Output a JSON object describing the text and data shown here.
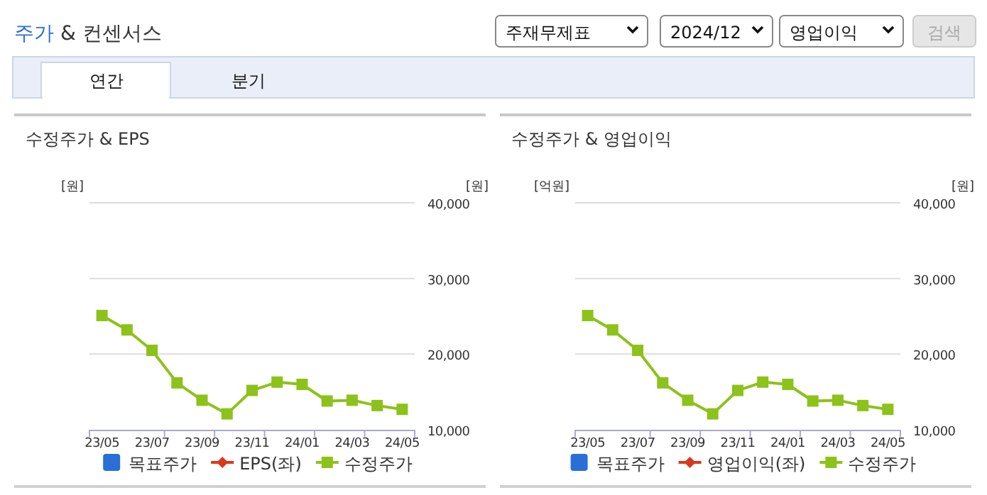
{
  "chart_data": [
    {
      "type": "other",
      "title": "주가 & 컨센서스",
      "annotations": [
        "주재무제표",
        "2024/12",
        "영업이익",
        "검색",
        "연간",
        "분기"
      ]
    },
    {
      "type": "line",
      "title": "수정주가 & EPS",
      "ylabel": "[원]",
      "y2label": "[원]",
      "categories": [
        "23/05",
        null,
        "23/07",
        null,
        "23/09",
        null,
        "23/11",
        null,
        "24/01",
        null,
        "24/03",
        null,
        "24/05"
      ],
      "y2lim": [
        10000,
        40000
      ],
      "y2ticks": [
        {
          "value": 10000,
          "label": "10,000"
        },
        {
          "value": 20000,
          "label": "20,000"
        },
        {
          "value": 30000,
          "label": "30,000"
        },
        {
          "value": 40000,
          "label": "40,000"
        }
      ],
      "grid": "y",
      "legend": "bottom",
      "series": [
        {
          "name": "목표주가",
          "type": "bar",
          "color": "#2a6fd6",
          "values": [
            null,
            null,
            null,
            null,
            null,
            null,
            null,
            null,
            null,
            null,
            null,
            null,
            null
          ]
        },
        {
          "name": "EPS(좌)",
          "type": "line",
          "marker": "diamond",
          "color": "#d9381e",
          "values": [
            null,
            null,
            null,
            null,
            null,
            null,
            null,
            null,
            null,
            null,
            null,
            null,
            null
          ]
        },
        {
          "name": "수정주가",
          "type": "line",
          "marker": "square",
          "axis": "y2",
          "color": "#8cc21a",
          "values": [
            25100,
            23200,
            20500,
            16200,
            13900,
            12100,
            15200,
            16300,
            16000,
            13800,
            13900,
            13200,
            12700
          ]
        }
      ]
    },
    {
      "type": "line",
      "title": "수정주가 & 영업이익",
      "ylabel": "[억원]",
      "y2label": "[원]",
      "categories": [
        "23/05",
        null,
        "23/07",
        null,
        "23/09",
        null,
        "23/11",
        null,
        "24/01",
        null,
        "24/03",
        null,
        "24/05"
      ],
      "y2lim": [
        10000,
        40000
      ],
      "y2ticks": [
        {
          "value": 10000,
          "label": "10,000"
        },
        {
          "value": 20000,
          "label": "20,000"
        },
        {
          "value": 30000,
          "label": "30,000"
        },
        {
          "value": 40000,
          "label": "40,000"
        }
      ],
      "grid": "y",
      "legend": "bottom",
      "series": [
        {
          "name": "목표주가",
          "type": "bar",
          "color": "#2a6fd6",
          "values": [
            null,
            null,
            null,
            null,
            null,
            null,
            null,
            null,
            null,
            null,
            null,
            null,
            null
          ]
        },
        {
          "name": "영업이익(좌)",
          "type": "line",
          "marker": "diamond",
          "color": "#d9381e",
          "values": [
            null,
            null,
            null,
            null,
            null,
            null,
            null,
            null,
            null,
            null,
            null,
            null,
            null
          ]
        },
        {
          "name": "수정주가",
          "type": "line",
          "marker": "square",
          "axis": "y2",
          "color": "#8cc21a",
          "values": [
            25100,
            23200,
            20500,
            16200,
            13900,
            12100,
            15200,
            16300,
            16000,
            13800,
            13900,
            13200,
            12700
          ]
        }
      ]
    }
  ]
}
